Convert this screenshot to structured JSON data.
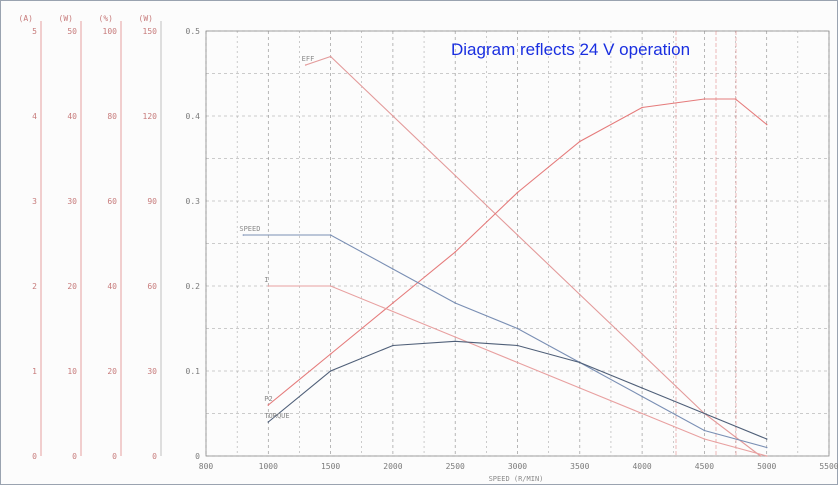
{
  "annotation": "Diagram reflects 24 V operation",
  "colors": {
    "efficiency": "#e39a9a",
    "output_power": "#e57b7b",
    "current": "#e8a0a0",
    "speed": "#7a8fb4",
    "torque_speed": "#6f8ab0",
    "torque_line": "#4f5f78",
    "annotation": "#1a2fe0",
    "red_axis": "#e08a8a",
    "grid": "#9a9a9a"
  },
  "chart_data": {
    "type": "line",
    "title": "",
    "xlabel": "SPEED (R/MIN)",
    "ylabel": "",
    "x_ticks": [
      "800",
      "1000",
      "1500",
      "2000",
      "2500",
      "3000",
      "3500",
      "4000",
      "4500",
      "5000",
      "5500"
    ],
    "x_range": [
      500,
      5500
    ],
    "y_range": [
      0,
      0.5
    ],
    "y_ticks": [
      "0",
      "0.1",
      "0.2",
      "0.3",
      "0.4",
      "0.5"
    ],
    "left_scales": [
      {
        "unit": "(A)",
        "ticks": [
          "0",
          "1",
          "2",
          "3",
          "4",
          "5"
        ]
      },
      {
        "unit": "(W)",
        "ticks": [
          "0",
          "10",
          "20",
          "30",
          "40",
          "50"
        ]
      },
      {
        "unit": "(%)",
        "ticks": [
          "0",
          "20",
          "40",
          "60",
          "80",
          "100"
        ]
      },
      {
        "unit": "(W)",
        "ticks": [
          "0",
          "30",
          "60",
          "90",
          "120",
          "150"
        ]
      }
    ],
    "series": [
      {
        "name": "EFF",
        "points": [
          [
            1300,
            0.46
          ],
          [
            1500,
            0.47
          ],
          [
            2000,
            0.4
          ],
          [
            2500,
            0.33
          ],
          [
            3000,
            0.26
          ],
          [
            3500,
            0.19
          ],
          [
            4000,
            0.12
          ],
          [
            4500,
            0.05
          ],
          [
            4950,
            0.0
          ]
        ]
      },
      {
        "name": "P2",
        "points": [
          [
            1000,
            0.06
          ],
          [
            1500,
            0.12
          ],
          [
            2000,
            0.18
          ],
          [
            2500,
            0.24
          ],
          [
            3000,
            0.31
          ],
          [
            3500,
            0.37
          ],
          [
            4000,
            0.41
          ],
          [
            4500,
            0.42
          ],
          [
            4750,
            0.42
          ],
          [
            5000,
            0.39
          ]
        ]
      },
      {
        "name": "SPEED",
        "points": [
          [
            800,
            0.26
          ],
          [
            1500,
            0.26
          ],
          [
            2000,
            0.22
          ],
          [
            2500,
            0.18
          ],
          [
            3000,
            0.15
          ],
          [
            3500,
            0.11
          ],
          [
            4000,
            0.07
          ],
          [
            4500,
            0.03
          ],
          [
            5000,
            0.01
          ]
        ]
      },
      {
        "name": "I",
        "points": [
          [
            1000,
            0.2
          ],
          [
            1500,
            0.2
          ],
          [
            2000,
            0.17
          ],
          [
            2500,
            0.14
          ],
          [
            3000,
            0.11
          ],
          [
            3500,
            0.08
          ],
          [
            4000,
            0.05
          ],
          [
            4500,
            0.02
          ],
          [
            5000,
            0.0
          ]
        ]
      },
      {
        "name": "TORQUE",
        "points": [
          [
            1000,
            0.04
          ],
          [
            1500,
            0.1
          ],
          [
            2000,
            0.13
          ],
          [
            2500,
            0.135
          ],
          [
            3000,
            0.13
          ],
          [
            3500,
            0.11
          ],
          [
            4000,
            0.08
          ],
          [
            4500,
            0.05
          ],
          [
            5000,
            0.02
          ]
        ]
      }
    ],
    "grid": true,
    "legend": "none"
  }
}
